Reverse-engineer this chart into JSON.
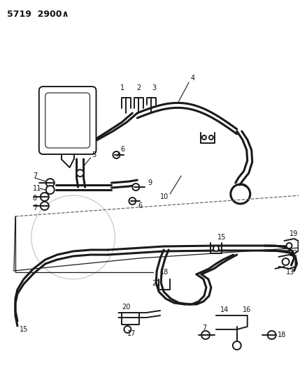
{
  "title_code": "5719  2900∧",
  "bg_color": "#ffffff",
  "line_color": "#1a1a1a",
  "fig_width": 4.29,
  "fig_height": 5.33,
  "dpi": 100
}
